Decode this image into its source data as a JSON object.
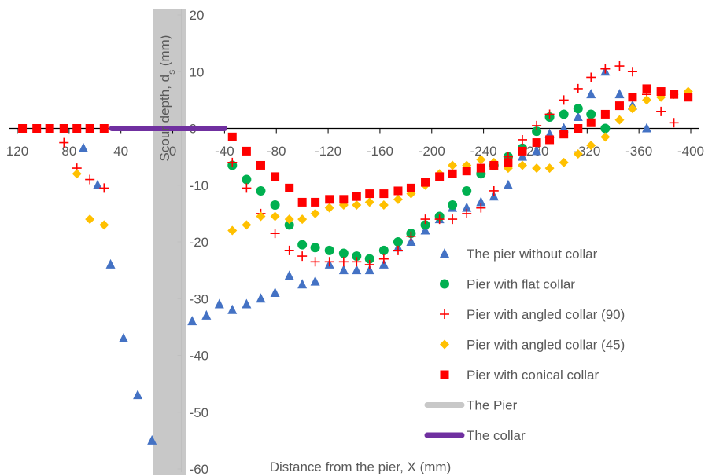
{
  "chart_data": {
    "type": "scatter",
    "xlabel": "Distance from the pier, X (mm)",
    "ylabel": "Scour depth, d",
    "ylabel_subscript": "s",
    "ylabel_unit": " (mm)",
    "xlim": [
      120,
      -400
    ],
    "ylim": [
      -60,
      20
    ],
    "x_reversed": true,
    "x_ticks": [
      120,
      80,
      40,
      0,
      -40,
      -80,
      -120,
      -160,
      -200,
      -240,
      -280,
      -320,
      -360,
      -400
    ],
    "y_ticks": [
      -60,
      -50,
      -40,
      -30,
      -20,
      -10,
      0,
      10,
      20
    ],
    "grid": false,
    "legend_position": "lower-right",
    "pier_band": {
      "x_from": 15,
      "x_to": -10,
      "color": "#c8c8c8"
    },
    "series": [
      {
        "name": "The pier without collar",
        "marker": "triangle",
        "color": "#4472c4",
        "points": [
          [
            69,
            -3.5
          ],
          [
            58,
            -10
          ],
          [
            48,
            -24
          ],
          [
            38,
            -37
          ],
          [
            27,
            -47
          ],
          [
            16,
            -55
          ],
          [
            -15,
            -34
          ],
          [
            -26,
            -33
          ],
          [
            -36,
            -31
          ],
          [
            -46,
            -32
          ],
          [
            -57,
            -31
          ],
          [
            -68,
            -30
          ],
          [
            -79,
            -29
          ],
          [
            -90,
            -26
          ],
          [
            -100,
            -27.5
          ],
          [
            -110,
            -27
          ],
          [
            -121,
            -24
          ],
          [
            -132,
            -25
          ],
          [
            -142,
            -25
          ],
          [
            -152,
            -25
          ],
          [
            -163,
            -24
          ],
          [
            -174,
            -21
          ],
          [
            -184,
            -20
          ],
          [
            -195,
            -18
          ],
          [
            -206,
            -16
          ],
          [
            -216,
            -14
          ],
          [
            -227,
            -14
          ],
          [
            -238,
            -13
          ],
          [
            -248,
            -12
          ],
          [
            -259,
            -10
          ],
          [
            -270,
            -5
          ],
          [
            -281,
            -4
          ],
          [
            -291,
            -1
          ],
          [
            -302,
            0
          ],
          [
            -313,
            2
          ],
          [
            -323,
            6
          ],
          [
            -334,
            10
          ],
          [
            -345,
            6
          ],
          [
            -355,
            4
          ],
          [
            -366,
            0
          ]
        ]
      },
      {
        "name": "Pier with flat collar",
        "marker": "circle",
        "color": "#00b050",
        "points": [
          [
            -46,
            -6.5
          ],
          [
            -57,
            -9
          ],
          [
            -68,
            -11
          ],
          [
            -79,
            -13.5
          ],
          [
            -90,
            -17
          ],
          [
            -100,
            -20.5
          ],
          [
            -110,
            -21
          ],
          [
            -121,
            -21.5
          ],
          [
            -132,
            -22
          ],
          [
            -142,
            -22.5
          ],
          [
            -152,
            -23
          ],
          [
            -163,
            -21.5
          ],
          [
            -174,
            -20
          ],
          [
            -184,
            -18.5
          ],
          [
            -195,
            -17
          ],
          [
            -206,
            -15.5
          ],
          [
            -216,
            -13.5
          ],
          [
            -227,
            -11
          ],
          [
            -238,
            -8
          ],
          [
            -248,
            -6.5
          ],
          [
            -259,
            -5
          ],
          [
            -270,
            -3.5
          ],
          [
            -281,
            -0.5
          ],
          [
            -291,
            2
          ],
          [
            -302,
            2.5
          ],
          [
            -313,
            3.5
          ],
          [
            -323,
            2.5
          ],
          [
            -334,
            0
          ]
        ]
      },
      {
        "name": "Pier with angled collar (90)",
        "marker": "plus",
        "color": "#ff0000",
        "points": [
          [
            84,
            -2.5
          ],
          [
            74,
            -7
          ],
          [
            64,
            -9
          ],
          [
            53,
            -10.5
          ],
          [
            -46,
            -6
          ],
          [
            -57,
            -10.5
          ],
          [
            -68,
            -15
          ],
          [
            -79,
            -18.5
          ],
          [
            -90,
            -21.5
          ],
          [
            -100,
            -22.5
          ],
          [
            -110,
            -23.5
          ],
          [
            -121,
            -23.5
          ],
          [
            -132,
            -23.5
          ],
          [
            -142,
            -23.5
          ],
          [
            -152,
            -24
          ],
          [
            -163,
            -23
          ],
          [
            -174,
            -21.5
          ],
          [
            -184,
            -19
          ],
          [
            -195,
            -16
          ],
          [
            -206,
            -16
          ],
          [
            -216,
            -16
          ],
          [
            -227,
            -15
          ],
          [
            -238,
            -14
          ],
          [
            -248,
            -11
          ],
          [
            -259,
            -5
          ],
          [
            -270,
            -2
          ],
          [
            -281,
            0.5
          ],
          [
            -291,
            2.5
          ],
          [
            -302,
            5
          ],
          [
            -313,
            7
          ],
          [
            -323,
            9
          ],
          [
            -334,
            10.5
          ],
          [
            -345,
            11
          ],
          [
            -355,
            10
          ],
          [
            -366,
            6
          ],
          [
            -377,
            3
          ],
          [
            -387,
            1
          ]
        ]
      },
      {
        "name": "Pier with angled collar (45)",
        "marker": "diamond",
        "color": "#ffc000",
        "points": [
          [
            74,
            -8
          ],
          [
            64,
            -16
          ],
          [
            53,
            -17
          ],
          [
            -46,
            -18
          ],
          [
            -57,
            -17
          ],
          [
            -68,
            -15.5
          ],
          [
            -79,
            -15.5
          ],
          [
            -90,
            -16
          ],
          [
            -100,
            -16
          ],
          [
            -110,
            -15
          ],
          [
            -121,
            -14
          ],
          [
            -132,
            -13.5
          ],
          [
            -142,
            -13.5
          ],
          [
            -152,
            -13
          ],
          [
            -163,
            -13.5
          ],
          [
            -174,
            -12.5
          ],
          [
            -184,
            -11.5
          ],
          [
            -195,
            -10
          ],
          [
            -206,
            -8
          ],
          [
            -216,
            -6.5
          ],
          [
            -227,
            -6.5
          ],
          [
            -238,
            -5.5
          ],
          [
            -248,
            -6
          ],
          [
            -259,
            -7
          ],
          [
            -270,
            -6.5
          ],
          [
            -281,
            -7
          ],
          [
            -291,
            -7
          ],
          [
            -302,
            -6
          ],
          [
            -313,
            -4.5
          ],
          [
            -323,
            -3
          ],
          [
            -334,
            -1.5
          ],
          [
            -345,
            1.5
          ],
          [
            -355,
            3.5
          ],
          [
            -366,
            5
          ],
          [
            -377,
            5.5
          ],
          [
            -387,
            6
          ],
          [
            -398,
            6.5
          ]
        ]
      },
      {
        "name": "Pier with conical collar",
        "marker": "square",
        "color": "#ff0000",
        "points": [
          [
            116,
            0
          ],
          [
            105,
            0
          ],
          [
            95,
            0
          ],
          [
            84,
            0
          ],
          [
            74,
            0
          ],
          [
            64,
            0
          ],
          [
            53,
            0
          ],
          [
            -46,
            -1.5
          ],
          [
            -57,
            -4
          ],
          [
            -68,
            -6.5
          ],
          [
            -79,
            -8.5
          ],
          [
            -90,
            -10.5
          ],
          [
            -100,
            -13
          ],
          [
            -110,
            -13
          ],
          [
            -121,
            -12.5
          ],
          [
            -132,
            -12.5
          ],
          [
            -142,
            -12
          ],
          [
            -152,
            -11.5
          ],
          [
            -163,
            -11.5
          ],
          [
            -174,
            -11
          ],
          [
            -184,
            -10.5
          ],
          [
            -195,
            -9.5
          ],
          [
            -206,
            -8.5
          ],
          [
            -216,
            -8
          ],
          [
            -227,
            -7.5
          ],
          [
            -238,
            -7
          ],
          [
            -248,
            -6.5
          ],
          [
            -259,
            -6
          ],
          [
            -270,
            -4
          ],
          [
            -281,
            -2.5
          ],
          [
            -291,
            -2
          ],
          [
            -302,
            -1
          ],
          [
            -313,
            0
          ],
          [
            -323,
            1
          ],
          [
            -334,
            2.5
          ],
          [
            -345,
            4
          ],
          [
            -355,
            5.5
          ],
          [
            -366,
            7
          ],
          [
            -377,
            6.5
          ],
          [
            -387,
            6
          ],
          [
            -398,
            5.5
          ]
        ]
      }
    ],
    "legend_lines": [
      {
        "name": "The Pier",
        "color": "#c8c8c8"
      },
      {
        "name": "The collar",
        "color": "#7030a0"
      }
    ],
    "collar_segment": {
      "x_from": 47,
      "x_to": -40,
      "y": 0,
      "color": "#7030a0"
    }
  }
}
